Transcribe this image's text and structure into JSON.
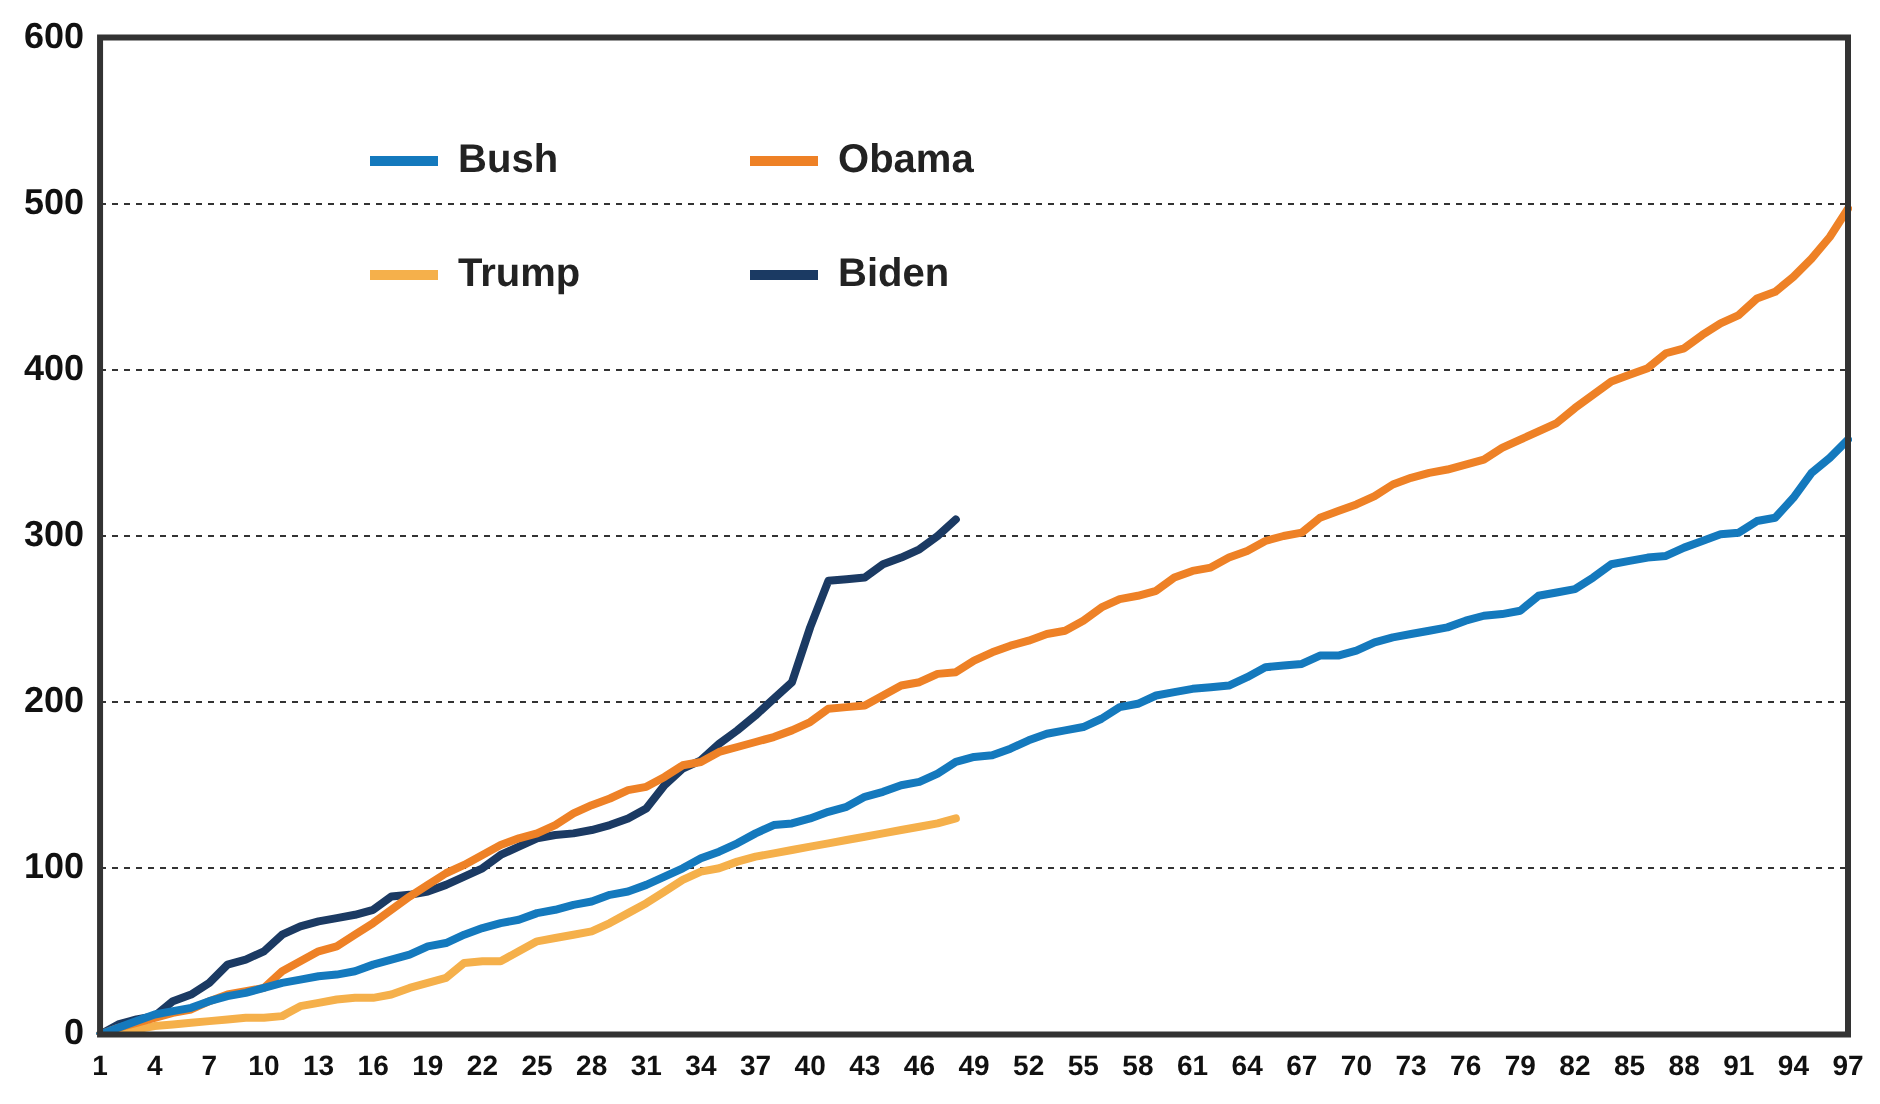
{
  "chart_data": {
    "type": "line",
    "categories": [
      "1",
      null,
      null,
      "4",
      null,
      null,
      "7",
      null,
      null,
      "10",
      null,
      null,
      "13",
      null,
      null,
      "16",
      null,
      null,
      "19",
      null,
      null,
      "22",
      null,
      null,
      "25",
      null,
      null,
      "28",
      null,
      null,
      "31",
      null,
      null,
      "34",
      null,
      null,
      "37",
      null,
      null,
      "40",
      null,
      null,
      "43",
      null,
      null,
      "46",
      null,
      null,
      "49",
      null,
      null,
      "52",
      null,
      null,
      "55",
      null,
      null,
      "58",
      null,
      null,
      "61",
      null,
      null,
      "64",
      null,
      null,
      "67",
      null,
      null,
      "70",
      null,
      null,
      "73",
      null,
      null,
      "76",
      null,
      null,
      "79",
      null,
      null,
      "82",
      null,
      null,
      "85",
      null,
      null,
      "88",
      null,
      null,
      "91",
      null,
      null,
      "94",
      null,
      null,
      "97"
    ],
    "series": [
      {
        "name": "Bush",
        "color": "#1479bd",
        "values": [
          0,
          4,
          8,
          12,
          14,
          16,
          20,
          23,
          25,
          28,
          31,
          33,
          35,
          36,
          38,
          42,
          45,
          48,
          53,
          55,
          60,
          64,
          67,
          69,
          73,
          75,
          78,
          80,
          84,
          86,
          90,
          95,
          100,
          106,
          110,
          115,
          121,
          126,
          127,
          130,
          134,
          137,
          143,
          146,
          150,
          152,
          157,
          164,
          167,
          168,
          172,
          177,
          181,
          183,
          185,
          190,
          197,
          199,
          204,
          206,
          208,
          209,
          210,
          215,
          221,
          222,
          223,
          228,
          228,
          231,
          236,
          239,
          241,
          243,
          245,
          249,
          252,
          253,
          255,
          264,
          266,
          268,
          275,
          283,
          285,
          287,
          288,
          293,
          297,
          301,
          302,
          309,
          311,
          323,
          338,
          347,
          358
        ]
      },
      {
        "name": "Obama",
        "color": "#ee8126",
        "values": [
          0,
          4,
          7,
          10,
          13,
          15,
          20,
          24,
          26,
          28,
          38,
          44,
          50,
          53,
          60,
          67,
          75,
          83,
          90,
          97,
          102,
          108,
          114,
          118,
          121,
          126,
          133,
          138,
          142,
          147,
          149,
          155,
          162,
          164,
          170,
          173,
          176,
          179,
          183,
          188,
          196,
          197,
          198,
          204,
          210,
          212,
          217,
          218,
          225,
          230,
          234,
          237,
          241,
          243,
          249,
          257,
          262,
          264,
          267,
          275,
          279,
          281,
          287,
          291,
          297,
          300,
          302,
          311,
          315,
          319,
          324,
          331,
          335,
          338,
          340,
          343,
          346,
          353,
          358,
          363,
          368,
          377,
          385,
          393,
          397,
          401,
          410,
          413,
          421,
          428,
          433,
          443,
          447,
          456,
          467,
          480,
          497
        ]
      },
      {
        "name": "Trump",
        "color": "#f5b04b",
        "values": [
          0,
          1,
          3,
          5,
          6,
          7,
          8,
          9,
          10,
          10,
          11,
          17,
          19,
          21,
          22,
          22,
          24,
          28,
          31,
          34,
          43,
          44,
          44,
          50,
          56,
          58,
          60,
          62,
          67,
          73,
          79,
          86,
          93,
          98,
          100,
          104,
          107,
          109,
          111,
          113,
          115,
          117,
          119,
          121,
          123,
          125,
          127,
          130,
          null,
          null,
          null,
          null,
          null,
          null,
          null,
          null,
          null,
          null,
          null,
          null,
          null,
          null,
          null,
          null,
          null,
          null,
          null,
          null,
          null,
          null,
          null,
          null,
          null,
          null,
          null,
          null,
          null,
          null,
          null,
          null,
          null,
          null,
          null,
          null,
          null,
          null,
          null,
          null,
          null,
          null,
          null,
          null,
          null,
          null,
          null,
          null,
          null
        ]
      },
      {
        "name": "Biden",
        "color": "#1b3a63",
        "values": [
          0,
          6,
          9,
          11,
          20,
          24,
          31,
          42,
          45,
          50,
          60,
          65,
          68,
          70,
          72,
          75,
          83,
          84,
          86,
          90,
          95,
          100,
          108,
          113,
          118,
          120,
          121,
          123,
          126,
          130,
          136,
          150,
          160,
          165,
          175,
          183,
          192,
          202,
          212,
          245,
          273,
          274,
          275,
          283,
          287,
          292,
          300,
          310,
          null,
          null,
          null,
          null,
          null,
          null,
          null,
          null,
          null,
          null,
          null,
          null,
          null,
          null,
          null,
          null,
          null,
          null,
          null,
          null,
          null,
          null,
          null,
          null,
          null,
          null,
          null,
          null,
          null,
          null,
          null,
          null,
          null,
          null,
          null,
          null,
          null,
          null,
          null,
          null,
          null,
          null,
          null,
          null,
          null,
          null,
          null,
          null,
          null
        ]
      }
    ],
    "ylim": [
      0,
      600
    ],
    "yticks": [
      0,
      100,
      200,
      300,
      400,
      500,
      600
    ],
    "grid": "y",
    "legend": "top left",
    "marker": "none",
    "line_style": "solid"
  }
}
